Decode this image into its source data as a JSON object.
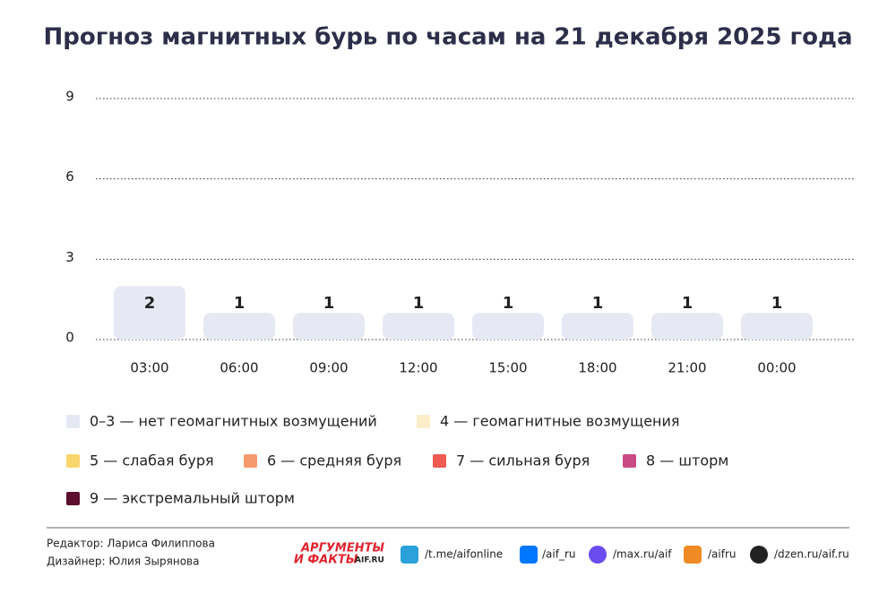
{
  "chart_data": {
    "type": "bar",
    "title": "Прогноз магнитных бурь по часам на 21 декабря 2025 года",
    "categories": [
      "03:00",
      "06:00",
      "09:00",
      "12:00",
      "15:00",
      "18:00",
      "21:00",
      "00:00"
    ],
    "values": [
      2,
      1,
      1,
      1,
      1,
      1,
      1,
      1
    ],
    "color": "#e6e9f3",
    "ylim": [
      0,
      9
    ],
    "yticks": [
      0,
      3,
      6,
      9
    ],
    "grid": true,
    "scale": [
      {
        "name": "0–3 — нет геомагнитных возмущений",
        "color": "#e6e9f3"
      },
      {
        "name": "4 — геомагнитные возмущения",
        "color": "#fdecc8"
      },
      {
        "name": "5 — слабая буря",
        "color": "#f9d56e"
      },
      {
        "name": "6 — средняя буря",
        "color": "#f59a6c"
      },
      {
        "name": "7 — сильная буря",
        "color": "#ef5a53"
      },
      {
        "name": "8 — шторм",
        "color": "#c94b86"
      },
      {
        "name": "9 — экстремальный шторм",
        "color": "#5c0f2e"
      }
    ]
  },
  "footer": {
    "editor": "Редактор: Лариса Филиппова",
    "designer": "Дизайнер: Юлия Зырянова",
    "logo": [
      "АРГУМЕНТЫ",
      "И ФАКТЫ",
      "AIF.RU"
    ],
    "links": [
      "/t.me/aifonline",
      "/aif_ru",
      "/max.ru/aif",
      "/aifru",
      "/dzen.ru/aif.ru"
    ]
  }
}
